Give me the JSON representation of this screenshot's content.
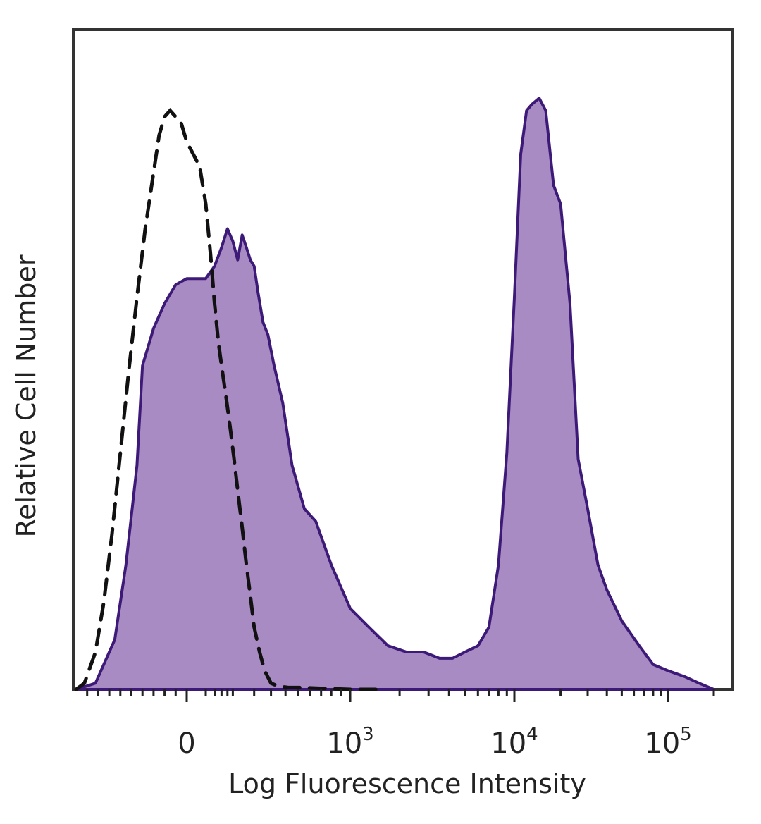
{
  "chart_data": {
    "type": "area",
    "title": "",
    "xlabel": "Log Fluorescence Intensity",
    "ylabel": "Relative Cell Number",
    "x_scale": "biexponential",
    "xlim": [
      -200,
      200000
    ],
    "ylim": [
      0,
      1.0
    ],
    "grid": false,
    "legend": "none",
    "x_ticks": [
      {
        "value": 0,
        "base": "0",
        "exp": ""
      },
      {
        "value": 1000,
        "base": "10",
        "exp": "3"
      },
      {
        "value": 10000,
        "base": "10",
        "exp": "4"
      },
      {
        "value": 100000,
        "base": "10",
        "exp": "5"
      }
    ],
    "series": [
      {
        "style": "filled",
        "fill": "#a98bc4",
        "stroke": "#3d1a78",
        "x": [
          -200,
          -165,
          -130,
          -110,
          -90,
          -80,
          -60,
          -40,
          -20,
          0,
          20,
          40,
          60,
          80,
          100,
          120,
          140,
          160,
          180,
          200,
          220,
          250,
          280,
          320,
          380,
          450,
          550,
          650,
          800,
          1000,
          1300,
          1700,
          2200,
          2800,
          3500,
          4200,
          5000,
          6000,
          7000,
          8000,
          9000,
          10000,
          11000,
          12000,
          13000,
          14500,
          16000,
          18000,
          20000,
          23000,
          26000,
          30000,
          35000,
          40000,
          50000,
          65000,
          80000,
          100000,
          130000,
          160000,
          200000
        ],
        "y": [
          0.0,
          0.01,
          0.08,
          0.2,
          0.36,
          0.52,
          0.58,
          0.62,
          0.65,
          0.66,
          0.66,
          0.68,
          0.71,
          0.74,
          0.72,
          0.69,
          0.73,
          0.71,
          0.69,
          0.68,
          0.64,
          0.59,
          0.57,
          0.52,
          0.46,
          0.36,
          0.29,
          0.27,
          0.2,
          0.13,
          0.1,
          0.07,
          0.06,
          0.06,
          0.05,
          0.05,
          0.06,
          0.07,
          0.1,
          0.2,
          0.38,
          0.63,
          0.86,
          0.93,
          0.94,
          0.95,
          0.93,
          0.81,
          0.78,
          0.62,
          0.37,
          0.29,
          0.2,
          0.16,
          0.11,
          0.07,
          0.04,
          0.03,
          0.02,
          0.01,
          0.0
        ]
      },
      {
        "style": "dashed",
        "stroke": "#111111",
        "x": [
          -200,
          -185,
          -165,
          -150,
          -135,
          -120,
          -105,
          -90,
          -75,
          -60,
          -50,
          -40,
          -30,
          -20,
          -10,
          0,
          10,
          20,
          30,
          40,
          50,
          60,
          75,
          90,
          105,
          120,
          140,
          160,
          180,
          200,
          230,
          260,
          300,
          350,
          420,
          520,
          650,
          800,
          1000,
          1500
        ],
        "y": [
          0.0,
          0.01,
          0.06,
          0.14,
          0.25,
          0.38,
          0.51,
          0.63,
          0.74,
          0.83,
          0.89,
          0.92,
          0.93,
          0.92,
          0.91,
          0.88,
          0.84,
          0.78,
          0.7,
          0.62,
          0.56,
          0.52,
          0.47,
          0.42,
          0.37,
          0.32,
          0.26,
          0.2,
          0.15,
          0.1,
          0.06,
          0.03,
          0.01,
          0.005,
          0.003,
          0.003,
          0.002,
          0.001,
          0.0,
          0.0
        ]
      }
    ]
  }
}
